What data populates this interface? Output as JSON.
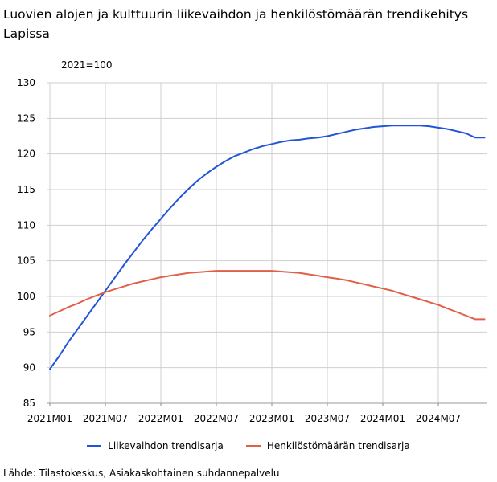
{
  "chart_data": {
    "type": "line",
    "title": "Luovien alojen ja kulttuurin liikevaihdon ja henkilöstömäärän trendikehitys Lapissa",
    "unit_label": "2021=100",
    "source": "Lähde: Tilastokeskus, Asiakaskohtainen suhdannepalvelu",
    "ylim": [
      85,
      130
    ],
    "yticks": [
      85,
      90,
      95,
      100,
      105,
      110,
      115,
      120,
      125,
      130
    ],
    "xticks": [
      {
        "label": "2021M01",
        "index": 0
      },
      {
        "label": "2021M07",
        "index": 6
      },
      {
        "label": "2022M01",
        "index": 12
      },
      {
        "label": "2022M07",
        "index": 18
      },
      {
        "label": "2023M01",
        "index": 24
      },
      {
        "label": "2023M07",
        "index": 30
      },
      {
        "label": "2024M01",
        "index": 36
      },
      {
        "label": "2024M07",
        "index": 42
      }
    ],
    "x_count": 48,
    "grid": true,
    "legend_position": "bottom",
    "series": [
      {
        "name": "Liikevaihdon trendisarja",
        "color": "#2055d8",
        "values": [
          89.8,
          91.6,
          93.6,
          95.4,
          97.2,
          99.0,
          100.8,
          102.6,
          104.4,
          106.1,
          107.8,
          109.4,
          110.9,
          112.4,
          113.8,
          115.1,
          116.3,
          117.3,
          118.2,
          119.0,
          119.7,
          120.2,
          120.7,
          121.1,
          121.4,
          121.7,
          121.9,
          122.0,
          122.2,
          122.3,
          122.5,
          122.8,
          123.1,
          123.4,
          123.6,
          123.8,
          123.9,
          124.0,
          124.0,
          124.0,
          124.0,
          123.9,
          123.7,
          123.5,
          123.2,
          122.9,
          122.3,
          122.3
        ]
      },
      {
        "name": "Henkilöstömäärän trendisarja",
        "color": "#e0604a",
        "values": [
          97.3,
          97.9,
          98.5,
          99.0,
          99.6,
          100.1,
          100.6,
          101.0,
          101.4,
          101.8,
          102.1,
          102.4,
          102.7,
          102.9,
          103.1,
          103.3,
          103.4,
          103.5,
          103.6,
          103.6,
          103.6,
          103.6,
          103.6,
          103.6,
          103.6,
          103.5,
          103.4,
          103.3,
          103.1,
          102.9,
          102.7,
          102.5,
          102.3,
          102.0,
          101.7,
          101.4,
          101.1,
          100.8,
          100.4,
          100.0,
          99.6,
          99.2,
          98.8,
          98.3,
          97.8,
          97.3,
          96.8,
          96.8
        ]
      }
    ]
  }
}
